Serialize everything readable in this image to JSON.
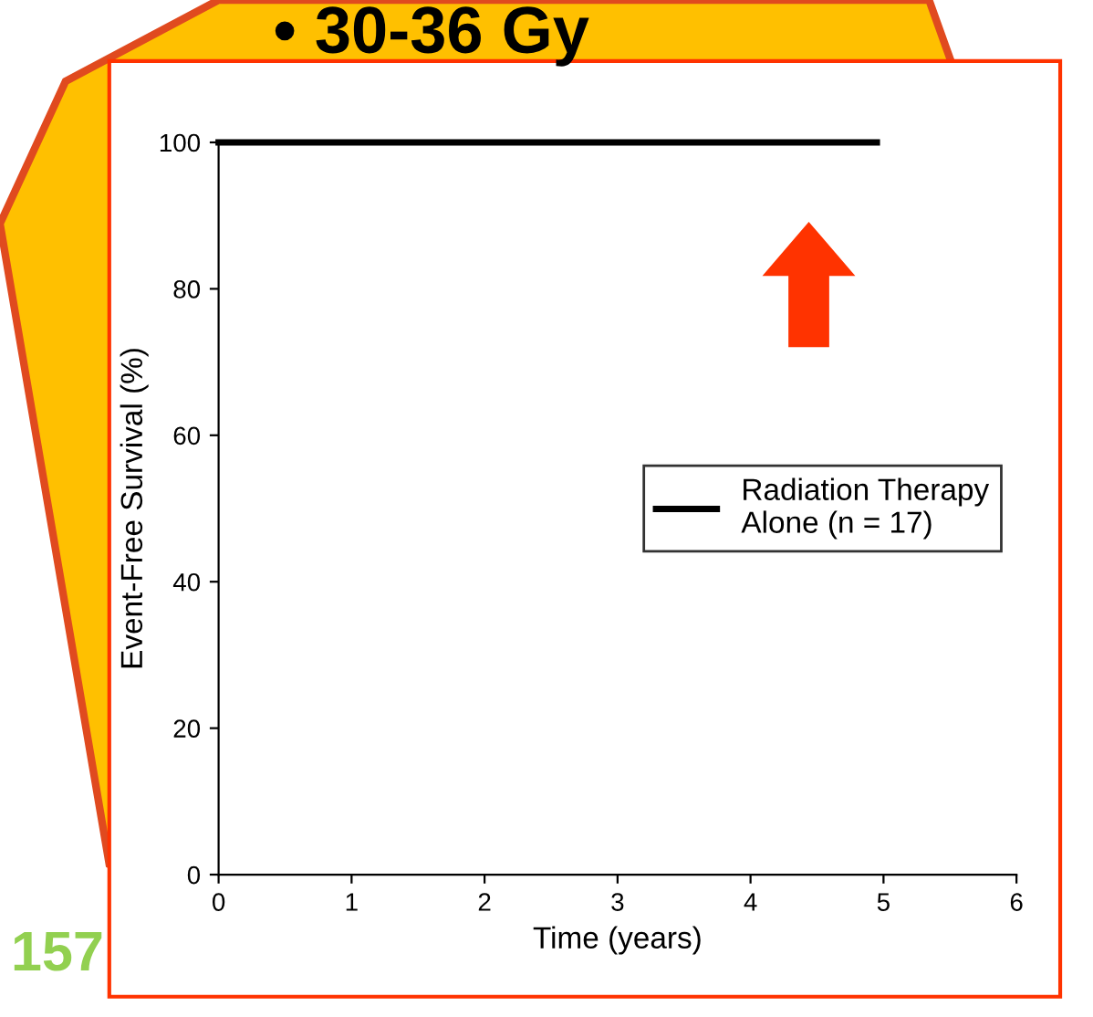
{
  "chart_data": {
    "type": "line",
    "xlabel": "Time (years)",
    "ylabel": "Event-Free Survival (%)",
    "x": [
      0,
      4.95
    ],
    "series": [
      {
        "name": "Radiation Therapy\nAlone (n = 17)",
        "color": "#000000",
        "values": [
          100,
          100
        ]
      }
    ],
    "xlim": [
      0,
      6
    ],
    "xticks": [
      0,
      1,
      2,
      3,
      4,
      5,
      6
    ],
    "ylim": [
      0,
      100
    ],
    "yticks": [
      0,
      20,
      40,
      60,
      80,
      100
    ],
    "grid": false,
    "legend": "right",
    "line_style": "solid",
    "marker": "none",
    "annotations": [
      "• 30-36 Gy",
      "157"
    ]
  }
}
